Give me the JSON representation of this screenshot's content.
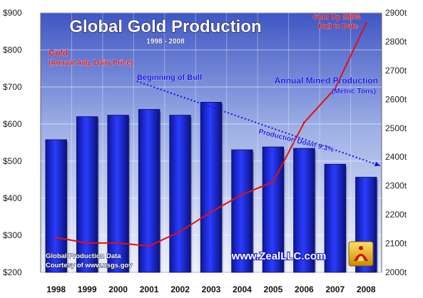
{
  "chart_data": {
    "type": "bar+line",
    "title": "Global Gold Production",
    "subtitle": "1998 - 2008",
    "categories": [
      "1998",
      "1999",
      "2000",
      "2001",
      "2002",
      "2003",
      "2004",
      "2005",
      "2006",
      "2007",
      "2008"
    ],
    "series": [
      {
        "name": "Annual Mined Production",
        "name_sub": "(Metric Tons)",
        "kind": "bar",
        "axis": "right",
        "values": [
          2460,
          2540,
          2545,
          2565,
          2545,
          2590,
          2425,
          2435,
          2430,
          2375,
          2330
        ],
        "color": "#1a2be0"
      },
      {
        "name": "Gold",
        "name_sub": "(Annual Avg. Daily Price)",
        "kind": "line",
        "axis": "left",
        "values": [
          294,
          279,
          279,
          271,
          310,
          363,
          410,
          444,
          604,
          696,
          872
        ],
        "color": "#e01010"
      }
    ],
    "left_axis": {
      "ticks": [
        "$200",
        "$300",
        "$400",
        "$500",
        "$600",
        "$700",
        "$800",
        "$900"
      ],
      "min": 200,
      "max": 900
    },
    "right_axis": {
      "ticks": [
        "2000t",
        "2100t",
        "2200t",
        "2300t",
        "2400t",
        "2500t",
        "2600t",
        "2700t",
        "2800t",
        "2900t"
      ],
      "min": 2000,
      "max": 2900
    },
    "trend_line": {
      "axis": "right",
      "x_from": "2001",
      "y_from": 2663,
      "x_to": "2008",
      "y_to": 2370
    },
    "annotations": {
      "beginning_of_bull": "Beginning of Bull",
      "production_down": "Production Down 9.3%",
      "gold_up_line1": "Gold Up 298%",
      "gold_up_line2": "Bull to Date",
      "source_line1": "Global Production Data",
      "source_line2": "Courtesy of www.usgs.gov",
      "website": "www.ZealLLC.com"
    },
    "grid": true,
    "colors": {
      "plot_bg_top": "#4a62c8",
      "plot_bg_bottom": "#e8ecf8",
      "bar": "#1a2be0",
      "line": "#e01010",
      "title_text": "#ffffff",
      "annotation_blue": "#1010e0",
      "annotation_red": "#e01010"
    }
  }
}
